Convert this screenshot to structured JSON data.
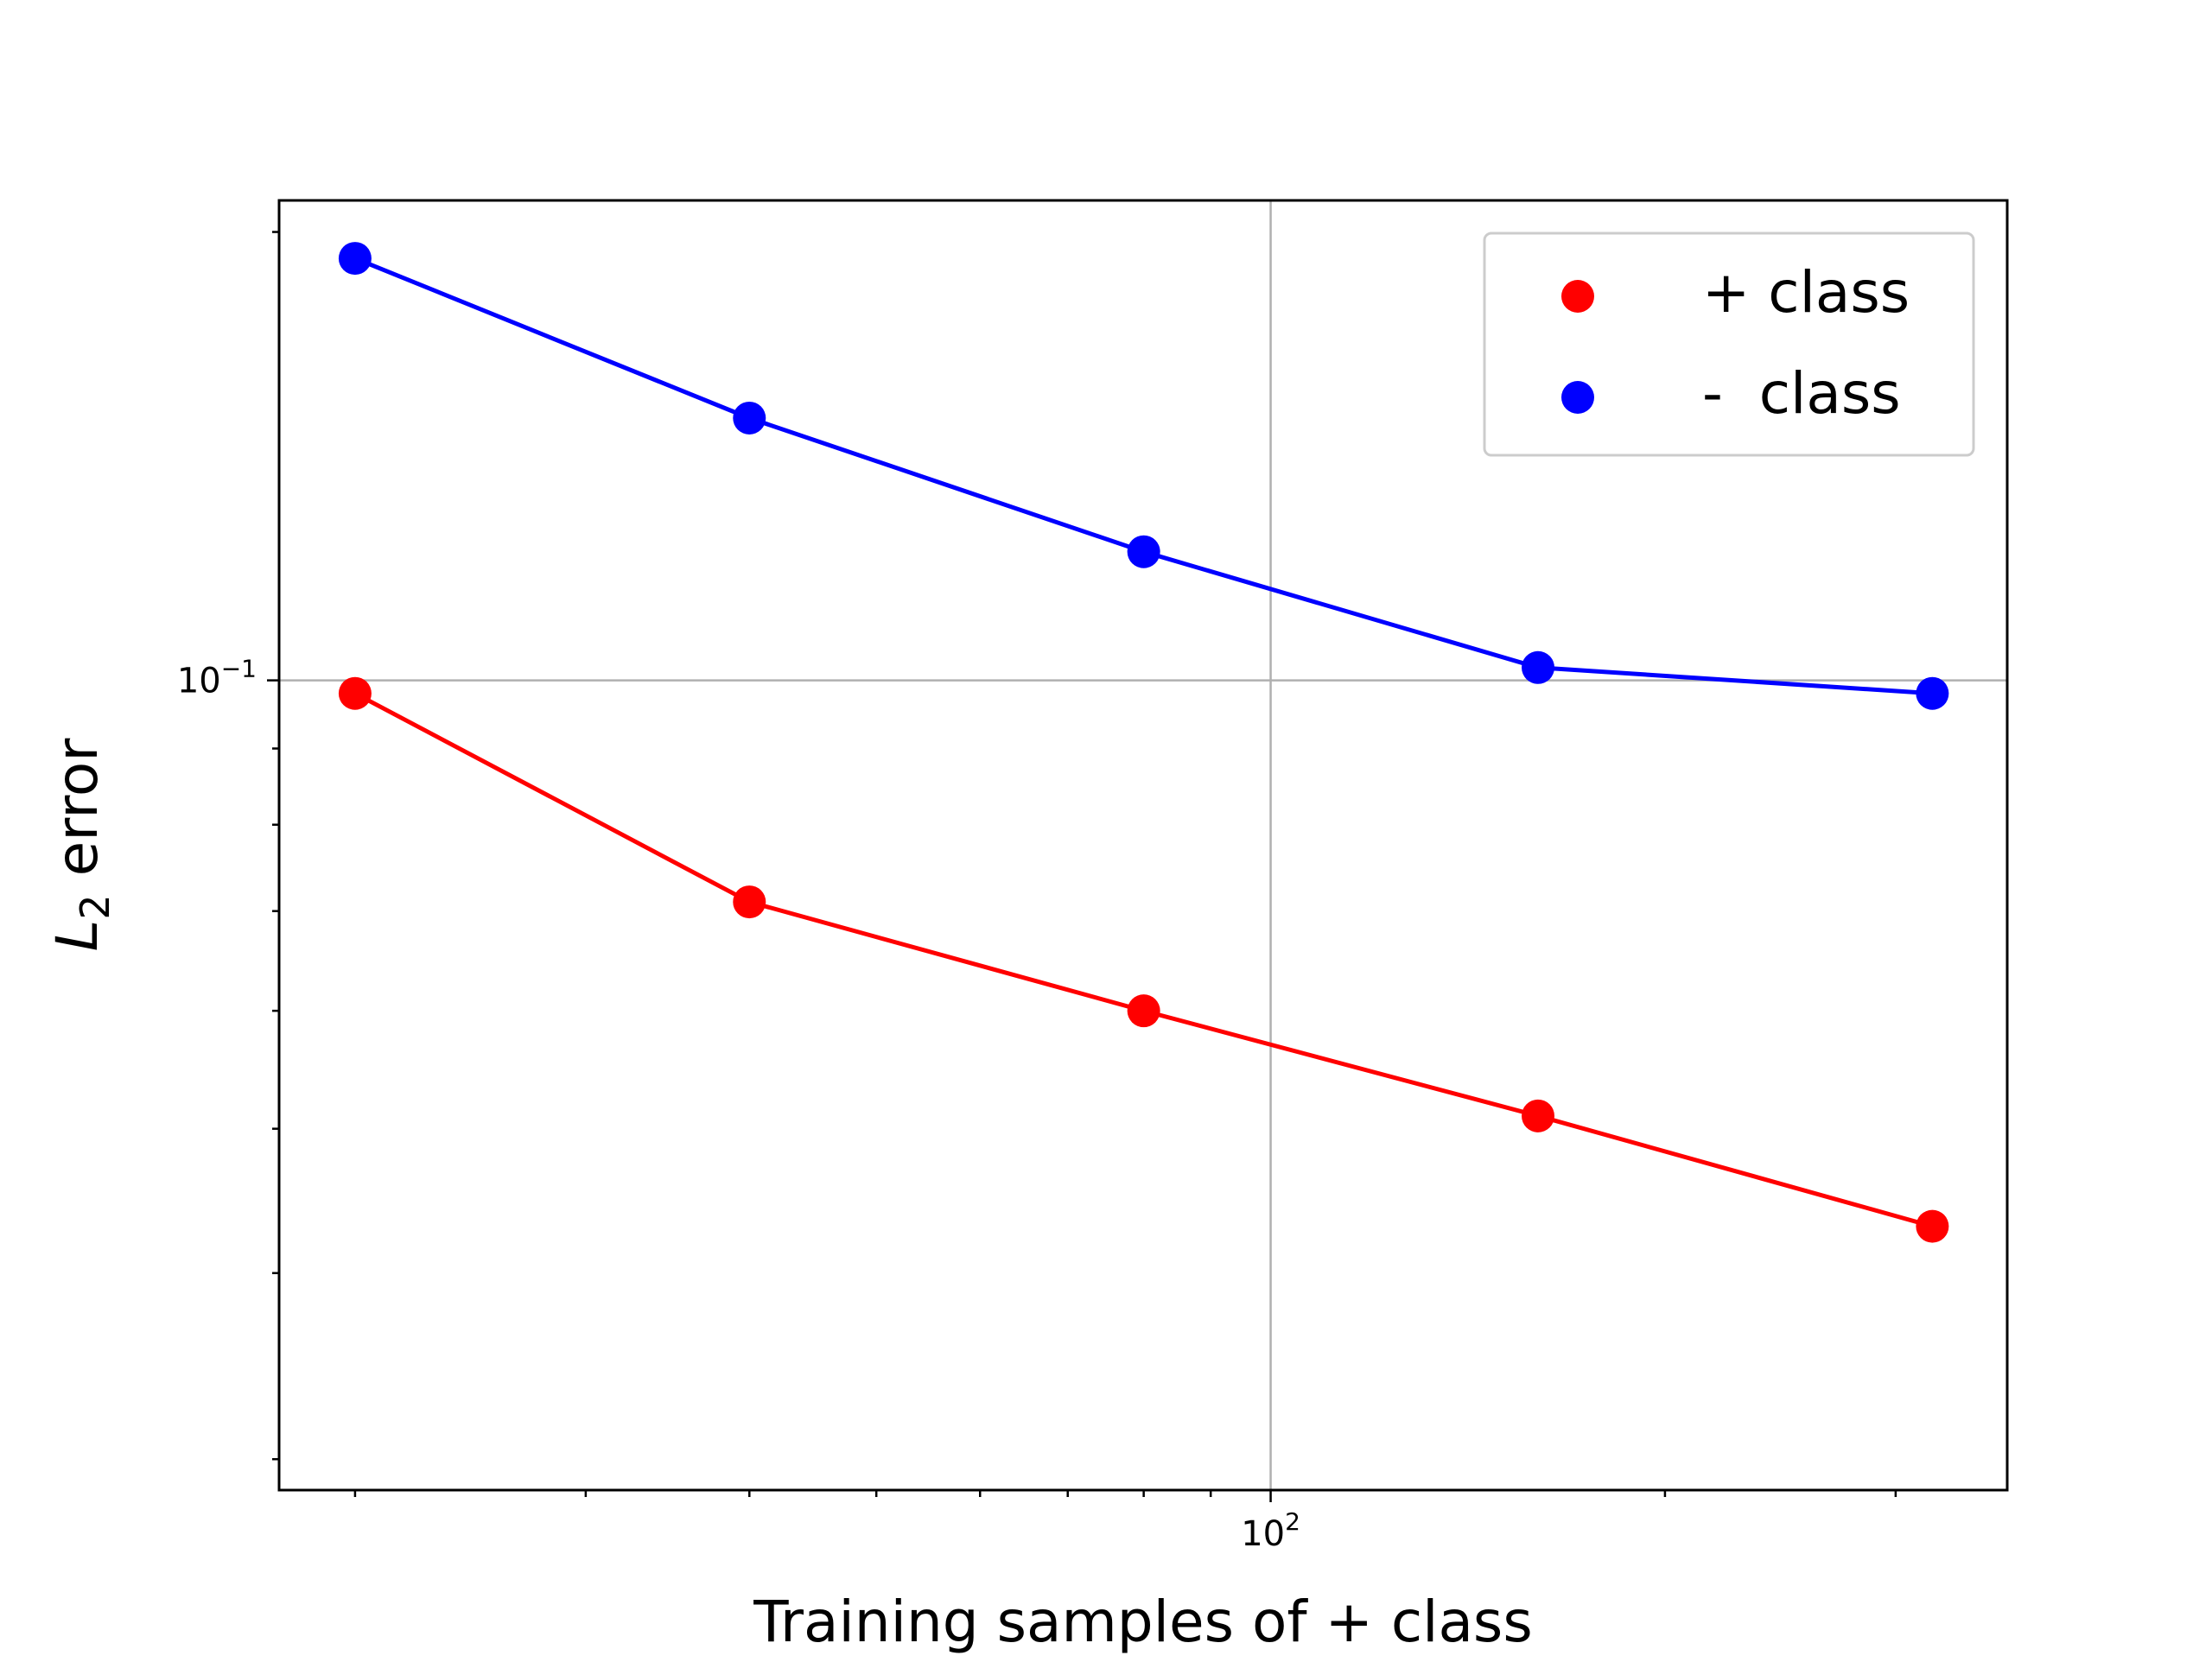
{
  "chart_data": {
    "type": "line",
    "title": "",
    "xlabel": "Training samples of + class",
    "ylabel_main": "L",
    "ylabel_sub": "2",
    "ylabel_rest": " error",
    "x_scale": "log",
    "y_scale": "log",
    "x": [
      20,
      40,
      80,
      160,
      320
    ],
    "xlim": [
      17.5,
      365
    ],
    "ylim": [
      0.0286,
      0.21
    ],
    "x_tick_labels": [
      {
        "value": 100,
        "base": "10",
        "exp": "2"
      }
    ],
    "y_tick_labels": [
      {
        "value": 0.1,
        "base": "10",
        "exp": "−1"
      }
    ],
    "grid": true,
    "legend_position": "upper right",
    "series": [
      {
        "name": "+ class",
        "color": "#ff0000",
        "values": [
          0.098,
          0.071,
          0.06,
          0.051,
          0.043
        ]
      },
      {
        "name": "-  class",
        "color": "#0000ff",
        "values": [
          0.192,
          0.15,
          0.122,
          0.102,
          0.098
        ]
      }
    ]
  }
}
